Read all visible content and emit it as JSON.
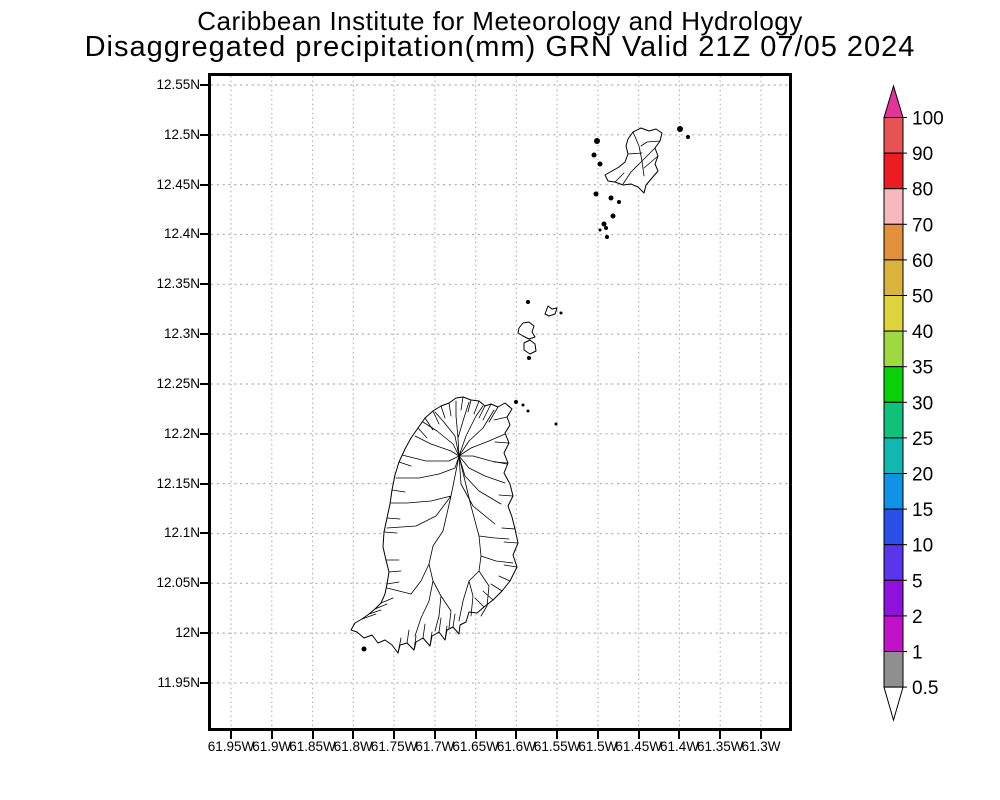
{
  "header": {
    "line1": "Caribbean Institute for Meteorology and Hydrology",
    "line2": "Disaggregated precipitation(mm) GRN Valid 21Z 07/05 2024"
  },
  "chart_data": {
    "type": "map",
    "title": "Caribbean Institute for Meteorology and Hydrology",
    "subtitle": "Disaggregated precipitation(mm) GRN Valid 21Z 07/05 2024",
    "variable": "Disaggregated precipitation",
    "units": "mm",
    "region_code": "GRN",
    "valid_time": "21Z 07/05 2024",
    "grid": true,
    "grid_color": "#b2b2b2",
    "coastline_color": "#000000",
    "x_axis": {
      "ticks": [
        "61.95W",
        "61.9W",
        "61.85W",
        "61.8W",
        "61.75W",
        "61.7W",
        "61.65W",
        "61.6W",
        "61.55W",
        "61.5W",
        "61.45W",
        "61.4W",
        "61.35W",
        "61.3W"
      ],
      "range": [
        "61.95W",
        "61.3W"
      ]
    },
    "y_axis": {
      "ticks": [
        "12.55N",
        "12.5N",
        "12.45N",
        "12.4N",
        "12.35N",
        "12.3N",
        "12.25N",
        "12.2N",
        "12.15N",
        "12.1N",
        "12.05N",
        "12N",
        "11.95N"
      ],
      "range": [
        "11.95N",
        "12.55N"
      ]
    },
    "precip_shading": "none visible (no areas at or above 0.5 mm shaded on map)",
    "colorbar": {
      "orientation": "vertical",
      "position": "right",
      "levels": [
        "100",
        "90",
        "80",
        "70",
        "60",
        "50",
        "40",
        "35",
        "30",
        "25",
        "20",
        "15",
        "10",
        "5",
        "2",
        "1",
        "0.5"
      ],
      "segment_colors": [
        "#e65352",
        "#ec1c23",
        "#f6b8bc",
        "#e1903c",
        "#d9b33c",
        "#e0d43e",
        "#a0d83f",
        "#0ad00a",
        "#11c17a",
        "#12b7b0",
        "#1092e6",
        "#2a50e8",
        "#5a35ea",
        "#8c12dc",
        "#c013c9",
        "#8f8f8f"
      ],
      "arrow_top_color": "#e2329b",
      "arrow_bottom_color": "#ffffff"
    }
  }
}
